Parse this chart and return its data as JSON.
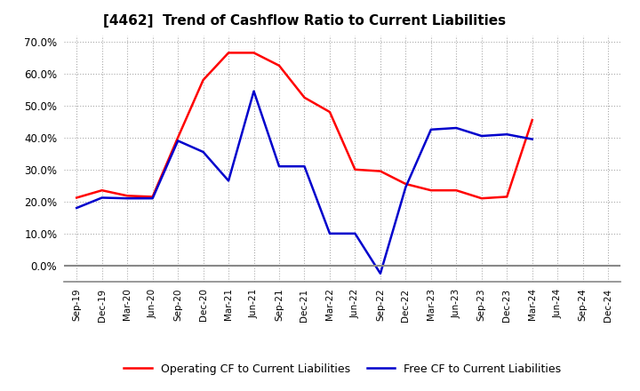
{
  "title": "[4462]  Trend of Cashflow Ratio to Current Liabilities",
  "x_labels": [
    "Sep-19",
    "Dec-19",
    "Mar-20",
    "Jun-20",
    "Sep-20",
    "Dec-20",
    "Mar-21",
    "Jun-21",
    "Sep-21",
    "Dec-21",
    "Mar-22",
    "Jun-22",
    "Sep-22",
    "Dec-22",
    "Mar-23",
    "Jun-23",
    "Sep-23",
    "Dec-23",
    "Mar-24",
    "Jun-24",
    "Sep-24",
    "Dec-24"
  ],
  "operating_cf": [
    0.212,
    0.235,
    0.218,
    0.215,
    0.4,
    0.58,
    0.665,
    0.665,
    0.625,
    0.525,
    0.48,
    0.3,
    0.295,
    0.255,
    0.235,
    0.235,
    0.21,
    0.215,
    0.455,
    null,
    null,
    null
  ],
  "free_cf": [
    0.18,
    0.212,
    0.21,
    0.21,
    0.39,
    0.355,
    0.265,
    0.545,
    0.31,
    0.31,
    0.1,
    0.1,
    -0.025,
    0.245,
    0.425,
    0.43,
    0.405,
    0.41,
    0.395,
    null,
    null,
    null
  ],
  "operating_color": "#ff0000",
  "free_color": "#0000cc",
  "ylim": [
    -0.05,
    0.72
  ],
  "yticks": [
    0.0,
    0.1,
    0.2,
    0.3,
    0.4,
    0.5,
    0.6,
    0.7
  ],
  "legend_op": "Operating CF to Current Liabilities",
  "legend_free": "Free CF to Current Liabilities",
  "background_color": "#ffffff",
  "grid_color": "#aaaaaa"
}
